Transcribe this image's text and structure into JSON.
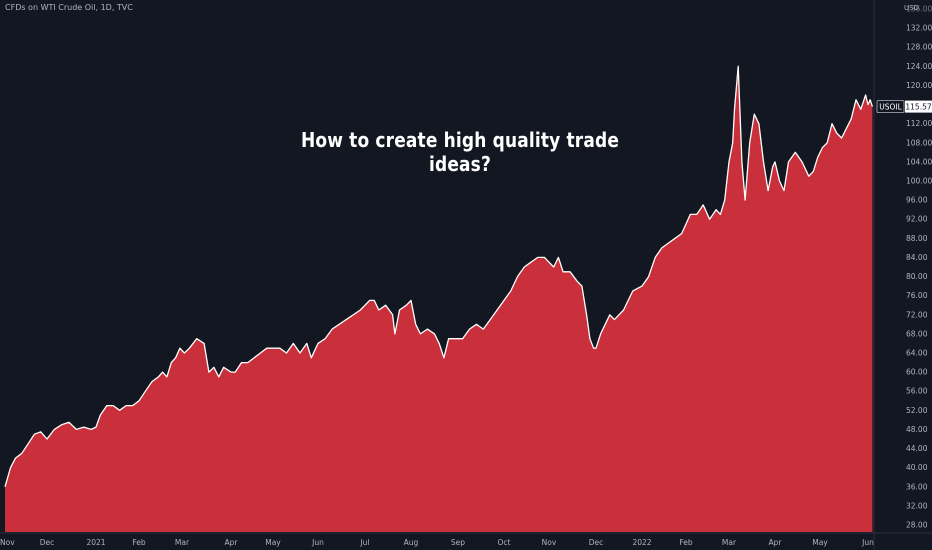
{
  "header": {
    "symbol_description": "CFDs on WTI Crude Oil, 1D, TVC",
    "currency": "USD"
  },
  "headline": "How to create high quality trade ideas?",
  "colors": {
    "background": "#131722",
    "area_fill": "#c9303b",
    "line": "#ffffff",
    "text": "#b2b5be"
  },
  "chart_data": {
    "type": "area",
    "ylim": [
      26,
      143
    ],
    "grid": false,
    "y_ticks": [
      "28.00",
      "32.00",
      "36.00",
      "40.00",
      "44.00",
      "48.00",
      "52.00",
      "56.00",
      "60.00",
      "64.00",
      "68.00",
      "72.00",
      "76.00",
      "80.00",
      "84.00",
      "88.00",
      "92.00",
      "96.00",
      "100.00",
      "104.00",
      "108.00",
      "112.00",
      "116.00",
      "120.00",
      "124.00",
      "128.00",
      "132.00"
    ],
    "y_tick_partial_top": "136.00",
    "x_ticks": [
      "Nov",
      "Dec",
      "2021",
      "Feb",
      "Mar",
      "Apr",
      "May",
      "Jun",
      "Jul",
      "Aug",
      "Sep",
      "Oct",
      "Nov",
      "Dec",
      "2022",
      "Feb",
      "Mar",
      "Apr",
      "May",
      "Jun"
    ],
    "x_tick_pos": [
      0,
      1,
      2,
      3,
      4,
      5,
      6,
      7,
      8,
      9,
      10,
      11,
      12,
      13,
      14,
      15,
      16,
      17,
      18,
      19
    ],
    "series": [
      {
        "values": [
          [
            0,
            36
          ],
          [
            0.13,
            40
          ],
          [
            0.25,
            42
          ],
          [
            0.4,
            43
          ],
          [
            0.55,
            45
          ],
          [
            0.7,
            47
          ],
          [
            0.85,
            47.5
          ],
          [
            1,
            46
          ],
          [
            1.15,
            48
          ],
          [
            1.3,
            49
          ],
          [
            1.45,
            49.5
          ],
          [
            1.6,
            48
          ],
          [
            1.75,
            48.5
          ],
          [
            1.9,
            48
          ],
          [
            2,
            48.5
          ],
          [
            2.1,
            51
          ],
          [
            2.25,
            53
          ],
          [
            2.4,
            53
          ],
          [
            2.55,
            52
          ],
          [
            2.7,
            53
          ],
          [
            2.85,
            53
          ],
          [
            3,
            54
          ],
          [
            3.15,
            56
          ],
          [
            3.3,
            58
          ],
          [
            3.45,
            59
          ],
          [
            3.55,
            60
          ],
          [
            3.65,
            59
          ],
          [
            3.75,
            62
          ],
          [
            3.85,
            63
          ],
          [
            3.95,
            65
          ],
          [
            4.05,
            64
          ],
          [
            4.15,
            65
          ],
          [
            4.3,
            67
          ],
          [
            4.45,
            66
          ],
          [
            4.55,
            60
          ],
          [
            4.65,
            61
          ],
          [
            4.75,
            59
          ],
          [
            4.85,
            61
          ],
          [
            5,
            60
          ],
          [
            5.1,
            60
          ],
          [
            5.25,
            62
          ],
          [
            5.4,
            62
          ],
          [
            5.55,
            63
          ],
          [
            5.7,
            64
          ],
          [
            5.85,
            65
          ],
          [
            6,
            65
          ],
          [
            6.15,
            65
          ],
          [
            6.3,
            64
          ],
          [
            6.45,
            66
          ],
          [
            6.6,
            64
          ],
          [
            6.75,
            66
          ],
          [
            6.85,
            63
          ],
          [
            7,
            66
          ],
          [
            7.15,
            67
          ],
          [
            7.3,
            69
          ],
          [
            7.45,
            70
          ],
          [
            7.6,
            71
          ],
          [
            7.75,
            72
          ],
          [
            7.9,
            73
          ],
          [
            8,
            74
          ],
          [
            8.1,
            75
          ],
          [
            8.2,
            75
          ],
          [
            8.3,
            73
          ],
          [
            8.45,
            74
          ],
          [
            8.6,
            72
          ],
          [
            8.65,
            68
          ],
          [
            8.75,
            73
          ],
          [
            8.9,
            74
          ],
          [
            9,
            75
          ],
          [
            9.1,
            70
          ],
          [
            9.2,
            68
          ],
          [
            9.35,
            69
          ],
          [
            9.5,
            68
          ],
          [
            9.6,
            66
          ],
          [
            9.7,
            63
          ],
          [
            9.8,
            67
          ],
          [
            9.95,
            67
          ],
          [
            10.1,
            67
          ],
          [
            10.25,
            69
          ],
          [
            10.4,
            70
          ],
          [
            10.55,
            69
          ],
          [
            10.7,
            71
          ],
          [
            10.85,
            73
          ],
          [
            11,
            75
          ],
          [
            11.15,
            77
          ],
          [
            11.3,
            80
          ],
          [
            11.45,
            82
          ],
          [
            11.6,
            83
          ],
          [
            11.75,
            84
          ],
          [
            11.9,
            84
          ],
          [
            12,
            83
          ],
          [
            12.1,
            82
          ],
          [
            12.2,
            84
          ],
          [
            12.3,
            81
          ],
          [
            12.45,
            81
          ],
          [
            12.6,
            79
          ],
          [
            12.7,
            78
          ],
          [
            12.8,
            72
          ],
          [
            12.87,
            67
          ],
          [
            12.95,
            65
          ],
          [
            13,
            65
          ],
          [
            13.1,
            68
          ],
          [
            13.2,
            70
          ],
          [
            13.3,
            72
          ],
          [
            13.4,
            71
          ],
          [
            13.5,
            72
          ],
          [
            13.6,
            73
          ],
          [
            13.7,
            75
          ],
          [
            13.8,
            77
          ],
          [
            14,
            78
          ],
          [
            14.15,
            80
          ],
          [
            14.3,
            84
          ],
          [
            14.45,
            86
          ],
          [
            14.6,
            87
          ],
          [
            14.75,
            88
          ],
          [
            14.9,
            89
          ],
          [
            15,
            91
          ],
          [
            15.1,
            93
          ],
          [
            15.25,
            93
          ],
          [
            15.4,
            95
          ],
          [
            15.55,
            92
          ],
          [
            15.7,
            94
          ],
          [
            15.8,
            93
          ],
          [
            15.9,
            96
          ],
          [
            16,
            104
          ],
          [
            16.08,
            108
          ],
          [
            16.12,
            115
          ],
          [
            16.2,
            124
          ],
          [
            16.28,
            104
          ],
          [
            16.35,
            96
          ],
          [
            16.45,
            108
          ],
          [
            16.55,
            114
          ],
          [
            16.65,
            112
          ],
          [
            16.75,
            104
          ],
          [
            16.85,
            98
          ],
          [
            16.95,
            103
          ],
          [
            17,
            104
          ],
          [
            17.1,
            100
          ],
          [
            17.2,
            98
          ],
          [
            17.3,
            104
          ],
          [
            17.45,
            106
          ],
          [
            17.6,
            104
          ],
          [
            17.75,
            101
          ],
          [
            17.85,
            102
          ],
          [
            17.95,
            105
          ],
          [
            18.05,
            107
          ],
          [
            18.15,
            108
          ],
          [
            18.25,
            112
          ],
          [
            18.35,
            110
          ],
          [
            18.45,
            109
          ],
          [
            18.55,
            111
          ],
          [
            18.65,
            113
          ],
          [
            18.75,
            117
          ],
          [
            18.85,
            115
          ],
          [
            18.95,
            118
          ],
          [
            19,
            116
          ],
          [
            19.05,
            117
          ],
          [
            19.1,
            115.57
          ]
        ]
      }
    ],
    "last_price_label": {
      "symbol": "USOIL",
      "value": "115.57"
    }
  }
}
